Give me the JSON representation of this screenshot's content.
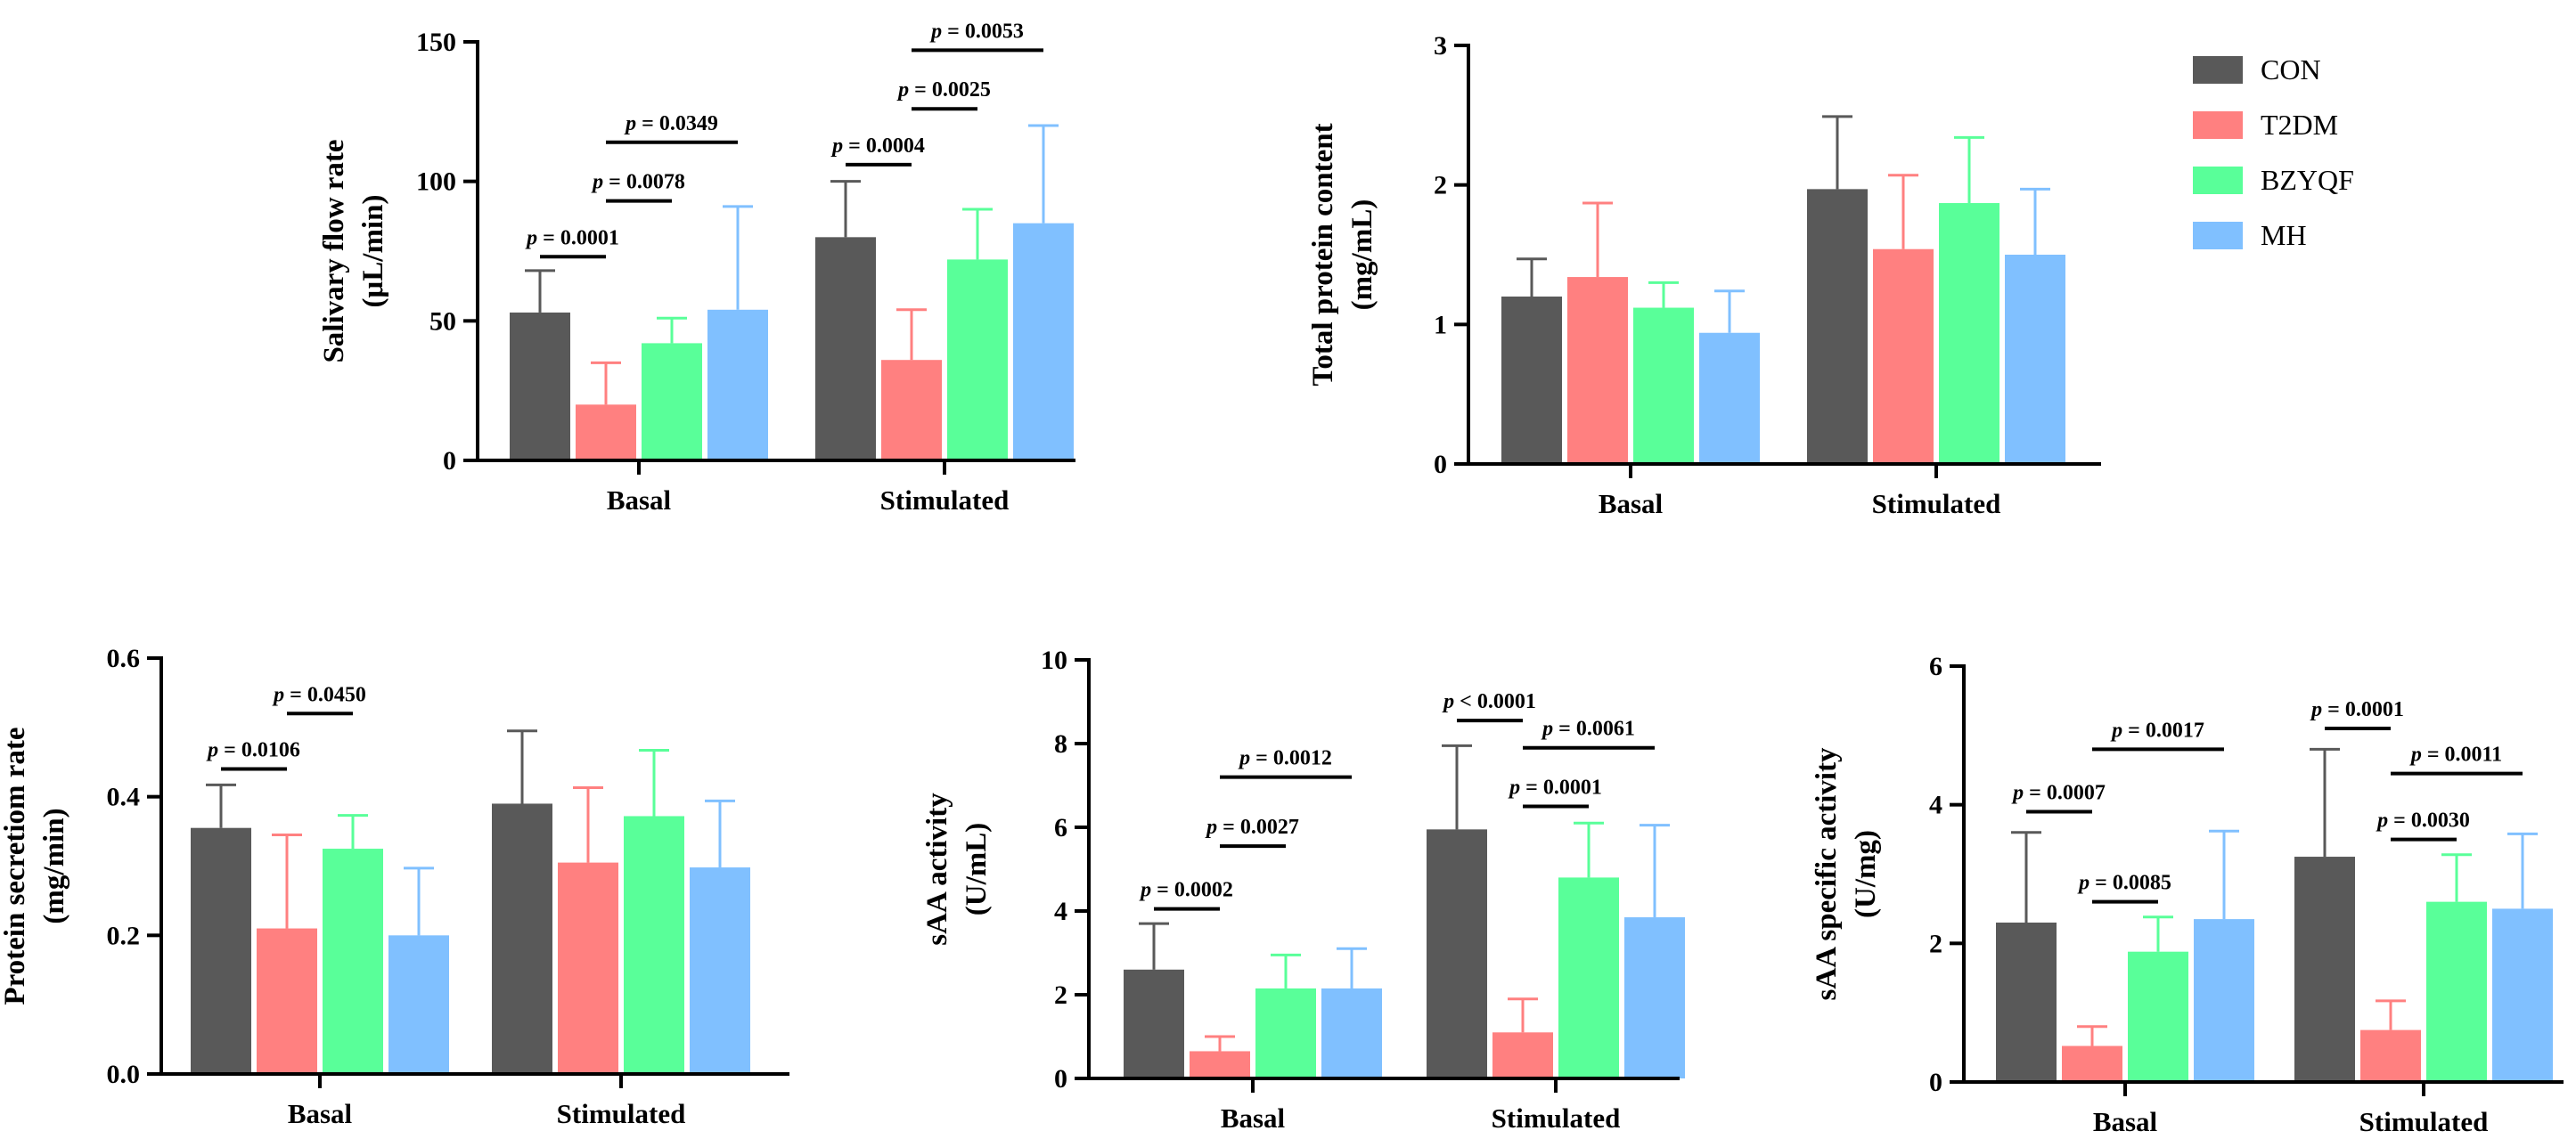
{
  "legend": [
    {
      "name": "CON",
      "color": "#595959"
    },
    {
      "name": "T2DM",
      "color": "#ff8080"
    },
    {
      "name": "BZYQF",
      "color": "#59ff99"
    },
    {
      "name": "MH",
      "color": "#80c0ff"
    }
  ],
  "chart_data": [
    {
      "type": "bar",
      "ylabel_lines": [
        "Salivary flow rate",
        "(μL/min)"
      ],
      "categories": [
        "Basal",
        "Stimulated"
      ],
      "ylim": [
        0,
        150
      ],
      "yticks": [
        0,
        50,
        100,
        150
      ],
      "tick_labels": [
        "0",
        "50",
        "100",
        "150"
      ],
      "series": [
        {
          "name": "CON",
          "values": [
            53,
            80
          ],
          "errors": [
            15,
            20
          ]
        },
        {
          "name": "T2DM",
          "values": [
            20,
            36
          ],
          "errors": [
            15,
            18
          ]
        },
        {
          "name": "BZYQF",
          "values": [
            42,
            72
          ],
          "errors": [
            9,
            18
          ]
        },
        {
          "name": "MH",
          "values": [
            54,
            85
          ],
          "errors": [
            37,
            35
          ]
        }
      ],
      "annotations": [
        {
          "text": "p = 0.0001",
          "from": [
            0,
            0
          ],
          "to": [
            0,
            1
          ],
          "level": 73
        },
        {
          "text": "p = 0.0078",
          "from": [
            0,
            1
          ],
          "to": [
            0,
            2
          ],
          "level": 93
        },
        {
          "text": "p = 0.0349",
          "from": [
            0,
            1
          ],
          "to": [
            0,
            3
          ],
          "level": 114
        },
        {
          "text": "p = 0.0004",
          "from": [
            1,
            0
          ],
          "to": [
            1,
            1
          ],
          "level": 106
        },
        {
          "text": "p = 0.0025",
          "from": [
            1,
            1
          ],
          "to": [
            1,
            2
          ],
          "level": 126
        },
        {
          "text": "p = 0.0053",
          "from": [
            1,
            1
          ],
          "to": [
            1,
            3
          ],
          "level": 147
        }
      ]
    },
    {
      "type": "bar",
      "ylabel_lines": [
        "Total protein content",
        "(mg/mL)"
      ],
      "categories": [
        "Basal",
        "Stimulated"
      ],
      "ylim": [
        0,
        3
      ],
      "yticks": [
        0,
        1,
        2,
        3
      ],
      "tick_labels": [
        "0",
        "1",
        "2",
        "3"
      ],
      "series": [
        {
          "name": "CON",
          "values": [
            1.2,
            1.97
          ],
          "errors": [
            0.27,
            0.52
          ]
        },
        {
          "name": "T2DM",
          "values": [
            1.34,
            1.54
          ],
          "errors": [
            0.53,
            0.53
          ]
        },
        {
          "name": "BZYQF",
          "values": [
            1.12,
            1.87
          ],
          "errors": [
            0.18,
            0.47
          ]
        },
        {
          "name": "MH",
          "values": [
            0.94,
            1.5
          ],
          "errors": [
            0.3,
            0.47
          ]
        }
      ],
      "annotations": []
    },
    {
      "type": "bar",
      "ylabel_lines": [
        "Protein secretiom rate",
        "(mg/min)"
      ],
      "categories": [
        "Basal",
        "Stimulated"
      ],
      "ylim": [
        0,
        0.6
      ],
      "yticks": [
        0,
        0.2,
        0.4,
        0.6
      ],
      "tick_labels": [
        "0.0",
        "0.2",
        "0.4",
        "0.6"
      ],
      "series": [
        {
          "name": "CON",
          "values": [
            0.355,
            0.39
          ],
          "errors": [
            0.062,
            0.105
          ]
        },
        {
          "name": "T2DM",
          "values": [
            0.21,
            0.305
          ],
          "errors": [
            0.135,
            0.108
          ]
        },
        {
          "name": "BZYQF",
          "values": [
            0.325,
            0.372
          ],
          "errors": [
            0.048,
            0.095
          ]
        },
        {
          "name": "MH",
          "values": [
            0.2,
            0.298
          ],
          "errors": [
            0.097,
            0.096
          ]
        }
      ],
      "annotations": [
        {
          "text": "p = 0.0106",
          "from": [
            0,
            0
          ],
          "to": [
            0,
            1
          ],
          "level": 0.44
        },
        {
          "text": "p = 0.0450",
          "from": [
            0,
            1
          ],
          "to": [
            0,
            2
          ],
          "level": 0.52
        }
      ]
    },
    {
      "type": "bar",
      "ylabel_lines": [
        "sAA activity",
        "(U/mL)"
      ],
      "categories": [
        "Basal",
        "Stimulated"
      ],
      "ylim": [
        0,
        10
      ],
      "yticks": [
        0,
        2,
        4,
        6,
        8,
        10
      ],
      "tick_labels": [
        "0",
        "2",
        "4",
        "6",
        "8",
        "10"
      ],
      "series": [
        {
          "name": "CON",
          "values": [
            2.6,
            5.95
          ],
          "errors": [
            1.1,
            2.0
          ]
        },
        {
          "name": "T2DM",
          "values": [
            0.65,
            1.1
          ],
          "errors": [
            0.35,
            0.8
          ]
        },
        {
          "name": "BZYQF",
          "values": [
            2.15,
            4.8
          ],
          "errors": [
            0.8,
            1.3
          ]
        },
        {
          "name": "MH",
          "values": [
            2.15,
            3.85
          ],
          "errors": [
            0.95,
            2.2
          ]
        }
      ],
      "annotations": [
        {
          "text": "p = 0.0002",
          "from": [
            0,
            0
          ],
          "to": [
            0,
            1
          ],
          "level": 4.05
        },
        {
          "text": "p = 0.0027",
          "from": [
            0,
            1
          ],
          "to": [
            0,
            2
          ],
          "level": 5.55
        },
        {
          "text": "p = 0.0012",
          "from": [
            0,
            1
          ],
          "to": [
            0,
            3
          ],
          "level": 7.2
        },
        {
          "text": "p < 0.0001",
          "from": [
            1,
            0
          ],
          "to": [
            1,
            1
          ],
          "level": 8.55
        },
        {
          "text": "p = 0.0061",
          "from": [
            1,
            1
          ],
          "to": [
            1,
            3
          ],
          "level": 7.9
        },
        {
          "text": "p = 0.0001",
          "from": [
            1,
            1
          ],
          "to": [
            1,
            2
          ],
          "level": 6.5
        }
      ]
    },
    {
      "type": "bar",
      "ylabel_lines": [
        "sAA specific activity",
        "(U/mg)"
      ],
      "categories": [
        "Basal",
        "Stimulated"
      ],
      "ylim": [
        0,
        6
      ],
      "yticks": [
        0,
        2,
        4,
        6
      ],
      "tick_labels": [
        "0",
        "2",
        "4",
        "6"
      ],
      "series": [
        {
          "name": "CON",
          "values": [
            2.3,
            3.25
          ],
          "errors": [
            1.3,
            1.55
          ]
        },
        {
          "name": "T2DM",
          "values": [
            0.52,
            0.75
          ],
          "errors": [
            0.28,
            0.42
          ]
        },
        {
          "name": "BZYQF",
          "values": [
            1.88,
            2.6
          ],
          "errors": [
            0.5,
            0.68
          ]
        },
        {
          "name": "MH",
          "values": [
            2.35,
            2.5
          ],
          "errors": [
            1.27,
            1.08
          ]
        }
      ],
      "annotations": [
        {
          "text": "p = 0.0007",
          "from": [
            0,
            0
          ],
          "to": [
            0,
            1
          ],
          "level": 3.9
        },
        {
          "text": "p = 0.0085",
          "from": [
            0,
            1
          ],
          "to": [
            0,
            2
          ],
          "level": 2.6
        },
        {
          "text": "p = 0.0017",
          "from": [
            0,
            1
          ],
          "to": [
            0,
            3
          ],
          "level": 4.8
        },
        {
          "text": "p = 0.0001",
          "from": [
            1,
            0
          ],
          "to": [
            1,
            1
          ],
          "level": 5.1
        },
        {
          "text": "p = 0.0011",
          "from": [
            1,
            1
          ],
          "to": [
            1,
            3
          ],
          "level": 4.45
        },
        {
          "text": "p = 0.0030",
          "from": [
            1,
            1
          ],
          "to": [
            1,
            2
          ],
          "level": 3.5
        }
      ]
    }
  ]
}
